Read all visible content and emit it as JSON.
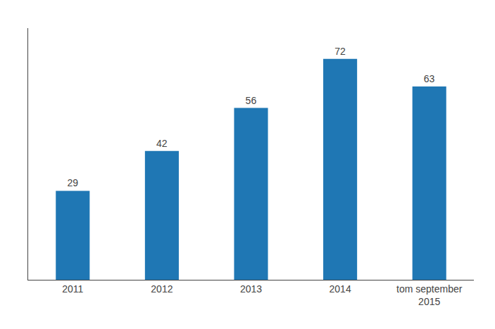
{
  "chart_data": {
    "type": "bar",
    "categories": [
      "2011",
      "2012",
      "2013",
      "2014",
      "tom september\n2015"
    ],
    "values": [
      29,
      42,
      56,
      72,
      63
    ],
    "ylim": [
      0,
      82
    ],
    "grid": false,
    "data_labels": true,
    "tick_labels": "x"
  }
}
